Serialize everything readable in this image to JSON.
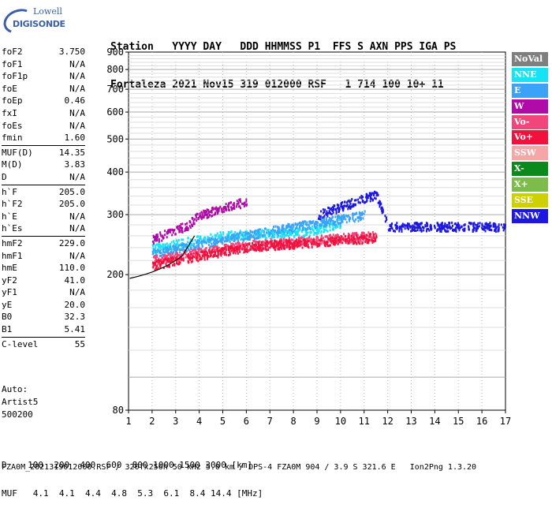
{
  "logo": {
    "line1": "Lowell",
    "line2": "DIGISONDE"
  },
  "header": {
    "labels": [
      "Station",
      "YYYY",
      "DAY",
      "DDD",
      "HHMMSS",
      "P1",
      "FFS",
      "S",
      "AXN",
      "PPS",
      "IGA",
      "PS"
    ],
    "values": [
      "Fortaleza",
      "2021",
      "Nov15",
      "319",
      "012000",
      "RSF",
      "1",
      "714",
      "100",
      "10+",
      "11"
    ]
  },
  "params": {
    "group1": [
      {
        "name": "foF2",
        "value": "3.750"
      },
      {
        "name": "foF1",
        "value": "N/A"
      },
      {
        "name": "foF1p",
        "value": "N/A"
      },
      {
        "name": "foE",
        "value": "N/A"
      },
      {
        "name": "foEp",
        "value": "0.46"
      },
      {
        "name": "fxI",
        "value": "N/A"
      },
      {
        "name": "foEs",
        "value": "N/A"
      },
      {
        "name": "fmin",
        "value": "1.60"
      }
    ],
    "group2": [
      {
        "name": "MUF(D)",
        "value": "14.35"
      },
      {
        "name": "M(D)",
        "value": "3.83"
      },
      {
        "name": "D",
        "value": "N/A"
      }
    ],
    "group3": [
      {
        "name": "h`F",
        "value": "205.0"
      },
      {
        "name": "h`F2",
        "value": "205.0"
      },
      {
        "name": "h`E",
        "value": "N/A"
      },
      {
        "name": "h`Es",
        "value": "N/A"
      }
    ],
    "group4": [
      {
        "name": "hmF2",
        "value": "229.0"
      },
      {
        "name": "hmF1",
        "value": "N/A"
      },
      {
        "name": "hmE",
        "value": "110.0"
      },
      {
        "name": "yF2",
        "value": "41.0"
      },
      {
        "name": "yF1",
        "value": "N/A"
      },
      {
        "name": "yE",
        "value": "20.0"
      },
      {
        "name": "B0",
        "value": "32.3"
      },
      {
        "name": "B1",
        "value": "5.41"
      }
    ],
    "group5": [
      {
        "name": "C-level",
        "value": "55"
      }
    ]
  },
  "auto": {
    "line1": "Auto:",
    "line2": "Artist5",
    "line3": "500200"
  },
  "bottom": {
    "d_label": "D",
    "d_values": [
      "100",
      "200",
      "400",
      "600",
      "800",
      "1000",
      "1500",
      "3000",
      "[km]"
    ],
    "muf_label": "MUF",
    "muf_values": [
      "4.1",
      "4.1",
      "4.4",
      "4.8",
      "5.3",
      "6.1",
      "8.4",
      "14.4",
      "[MHz]"
    ]
  },
  "footer": {
    "text": "FZA0M_2021319012000.RSF / 320fx256h 50 kHz 5.0 km / DPS-4 FZA0M 904 / 3.9 S 321.6 E   Ion2Png 1.3.20"
  },
  "legend": [
    {
      "label": "NoVal",
      "color": "#7f7f7f"
    },
    {
      "label": "NNE",
      "color": "#17e3f5"
    },
    {
      "label": "E",
      "color": "#3ba3f7"
    },
    {
      "label": "W",
      "color": "#b00aa9"
    },
    {
      "label": "Vo-",
      "color": "#f0467c"
    },
    {
      "label": "Vo+",
      "color": "#f2103c"
    },
    {
      "label": "SSW",
      "color": "#f5a6a6"
    },
    {
      "label": "X-",
      "color": "#0a8a1a"
    },
    {
      "label": "X+",
      "color": "#7cbb4c"
    },
    {
      "label": "SSE",
      "color": "#cfd000"
    },
    {
      "label": "NNW",
      "color": "#1c18e0"
    }
  ],
  "chart_data": {
    "type": "scatter",
    "xlim": [
      1,
      17
    ],
    "ylim": [
      80,
      900
    ],
    "y_scale": "log",
    "x_ticks": [
      1,
      2,
      3,
      4,
      5,
      6,
      7,
      8,
      9,
      10,
      11,
      12,
      13,
      14,
      15,
      16,
      17
    ],
    "y_ticks": [
      80,
      200,
      300,
      400,
      500,
      600,
      700,
      800,
      900
    ],
    "series": [
      {
        "name": "NNE",
        "trace": [
          [
            2.0,
            240
          ],
          [
            5.0,
            262
          ],
          [
            8.5,
            268
          ],
          [
            10.0,
            285
          ]
        ]
      },
      {
        "name": "E",
        "trace": [
          [
            2.0,
            232
          ],
          [
            6.0,
            262
          ],
          [
            9.0,
            285
          ],
          [
            11.0,
            300
          ]
        ]
      },
      {
        "name": "W",
        "trace": [
          [
            2.0,
            255
          ],
          [
            3.5,
            280
          ],
          [
            4.0,
            300
          ],
          [
            6.0,
            330
          ]
        ]
      },
      {
        "name": "Vo-",
        "trace": [
          [
            2.0,
            222
          ],
          [
            6.0,
            245
          ],
          [
            11.5,
            262
          ]
        ]
      },
      {
        "name": "Vo+",
        "trace": [
          [
            2.0,
            214
          ],
          [
            6.0,
            242
          ],
          [
            11.5,
            258
          ]
        ]
      },
      {
        "name": "NNW",
        "trace": [
          [
            9.0,
            300
          ],
          [
            11.5,
            345
          ],
          [
            12.0,
            278
          ],
          [
            17.0,
            278
          ]
        ]
      }
    ],
    "grid": true
  }
}
